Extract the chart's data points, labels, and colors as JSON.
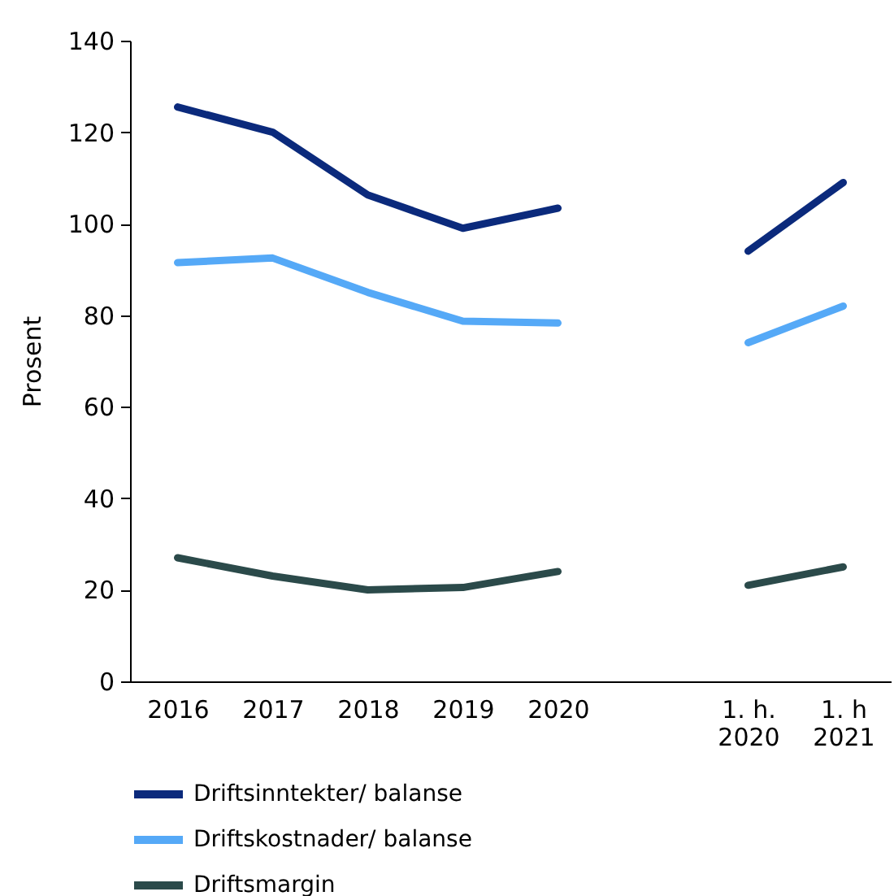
{
  "chart_data": {
    "type": "line",
    "ylabel": "Prosent",
    "categories": [
      "2016",
      "2017",
      "2018",
      "2019",
      "2020",
      null,
      "1. h.\n2020",
      "1. h\n2021"
    ],
    "series": [
      {
        "name": "Driftsinntekter/ balanse",
        "color": "#0b2a7c",
        "values": [
          125.5,
          120,
          106.3,
          99,
          103.4,
          null,
          94,
          109
        ]
      },
      {
        "name": "Driftskostnader/ balanse",
        "color": "#55a9f7",
        "values": [
          91.5,
          92.5,
          85,
          78.7,
          78.3,
          null,
          74,
          82
        ]
      },
      {
        "name": "Driftsmargin",
        "color": "#2b4a4a",
        "values": [
          27,
          23,
          20,
          20.5,
          24,
          null,
          21,
          25
        ]
      }
    ],
    "ylim": [
      0,
      140
    ],
    "yticks": [
      0,
      20,
      40,
      60,
      80,
      100,
      120,
      140
    ],
    "grid": false,
    "legend": "bottom",
    "marker": "none",
    "line_style": "solid"
  }
}
